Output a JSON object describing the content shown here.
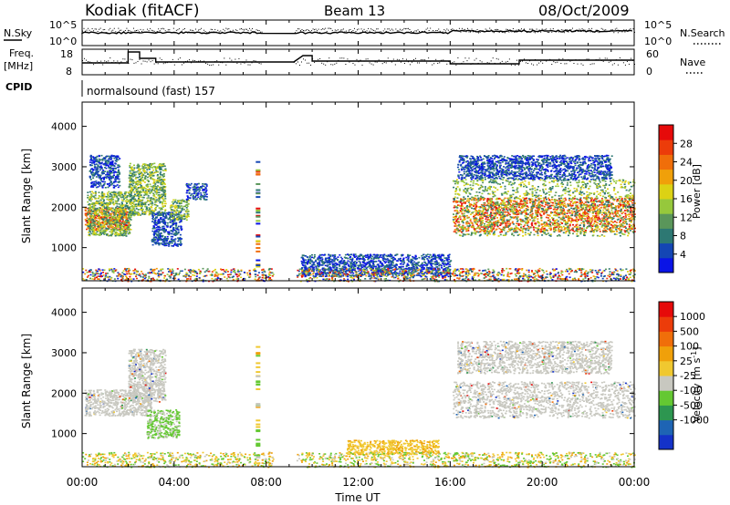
{
  "header": {
    "title_left": "Kodiak (fitACF)",
    "title_center": "Beam 13",
    "title_right": "08/Oct/2009"
  },
  "top_panels": {
    "nsky_label": "N.Sky",
    "nsearch_label": "N.Search",
    "noise_ticks_left": [
      "10^5",
      "10^0"
    ],
    "noise_ticks_right": [
      "10^5",
      "10^0"
    ],
    "freq_label_line1": "Freq.",
    "freq_label_line2": "[MHz]",
    "freq_ticks": [
      "18",
      "8"
    ],
    "nave_label": "Nave",
    "nave_ticks": [
      "60",
      "0"
    ],
    "cpid_label": "CPID",
    "cpid_text": "normalsound (fast) 157"
  },
  "chart_data": [
    {
      "type": "heatmap",
      "name": "power",
      "ylabel": "Slant Range [km]",
      "xlabel": "",
      "yticks": [
        "1000",
        "2000",
        "3000",
        "4000"
      ],
      "ylim": [
        180,
        4600
      ],
      "xlim": [
        0,
        24
      ],
      "colorbar": {
        "label": "Power [dB]",
        "ticks": [
          "4",
          "8",
          "12",
          "16",
          "20",
          "24",
          "28"
        ],
        "range": [
          0,
          32
        ],
        "colors": [
          "#0a14e6",
          "#1446b4",
          "#2d7873",
          "#5a965a",
          "#96c83c",
          "#dcd214",
          "#f0a00a",
          "#f06e0a",
          "#ec3c0a",
          "#e60a0a"
        ]
      },
      "regions": [
        {
          "x": [
            0.1,
            2.0
          ],
          "y": [
            1450,
            2000
          ],
          "level": "strong"
        },
        {
          "x": [
            0.2,
            2.1
          ],
          "y": [
            1300,
            2400
          ],
          "level": "medium"
        },
        {
          "x": [
            0.3,
            1.6
          ],
          "y": [
            2500,
            3300
          ],
          "level": "weak"
        },
        {
          "x": [
            2.0,
            3.6
          ],
          "y": [
            1800,
            3100
          ],
          "level": "medium"
        },
        {
          "x": [
            3.0,
            4.3
          ],
          "y": [
            1050,
            1900
          ],
          "level": "weak"
        },
        {
          "x": [
            3.8,
            4.6
          ],
          "y": [
            1700,
            2200
          ],
          "level": "medium"
        },
        {
          "x": [
            4.5,
            5.4
          ],
          "y": [
            2200,
            2600
          ],
          "level": "weak"
        },
        {
          "x": [
            9.5,
            16.0
          ],
          "y": [
            300,
            850
          ],
          "level": "weak"
        },
        {
          "x": [
            0.0,
            24.0
          ],
          "y": [
            180,
            500
          ],
          "level": "mixed"
        },
        {
          "x": [
            16.1,
            24.0
          ],
          "y": [
            1400,
            2250
          ],
          "level": "strong"
        },
        {
          "x": [
            16.1,
            24.0
          ],
          "y": [
            1300,
            2700
          ],
          "level": "medium"
        },
        {
          "x": [
            16.3,
            23.0
          ],
          "y": [
            2700,
            3300
          ],
          "level": "weak"
        }
      ]
    },
    {
      "type": "heatmap",
      "name": "velocity",
      "ylabel": "Slant Range [km]",
      "xlabel": "Time UT",
      "xticks": [
        "00:00",
        "04:00",
        "08:00",
        "12:00",
        "16:00",
        "20:00",
        "00:00"
      ],
      "yticks": [
        "1000",
        "2000",
        "3000",
        "4000"
      ],
      "ylim": [
        180,
        4600
      ],
      "xlim": [
        0,
        24
      ],
      "colorbar": {
        "label": "Velocity",
        "label_unit": "[m s",
        "label_exp": "-1",
        "label_close": "]",
        "ticks": [
          "1000",
          "500",
          "100",
          "25",
          "-25",
          "-100",
          "-500",
          "-1000"
        ],
        "colors": [
          "#1432c8",
          "#1e64b4",
          "#2d9650",
          "#64c832",
          "#c8c8c0",
          "#f0c830",
          "#f0a00a",
          "#f06e0a",
          "#ec3c0a",
          "#e60a0a"
        ]
      },
      "regions": [
        {
          "x": [
            0.1,
            3.0
          ],
          "y": [
            1450,
            2100
          ],
          "level": "grey"
        },
        {
          "x": [
            2.0,
            3.6
          ],
          "y": [
            1800,
            3100
          ],
          "level": "grey"
        },
        {
          "x": [
            2.8,
            4.2
          ],
          "y": [
            900,
            1600
          ],
          "level": "green"
        },
        {
          "x": [
            16.1,
            24.0
          ],
          "y": [
            1400,
            2300
          ],
          "level": "grey"
        },
        {
          "x": [
            16.3,
            23.0
          ],
          "y": [
            2500,
            3300
          ],
          "level": "grey"
        },
        {
          "x": [
            11.5,
            15.5
          ],
          "y": [
            500,
            850
          ],
          "level": "orange"
        },
        {
          "x": [
            0.0,
            24.0
          ],
          "y": [
            180,
            550
          ],
          "level": "mixed"
        }
      ]
    }
  ]
}
